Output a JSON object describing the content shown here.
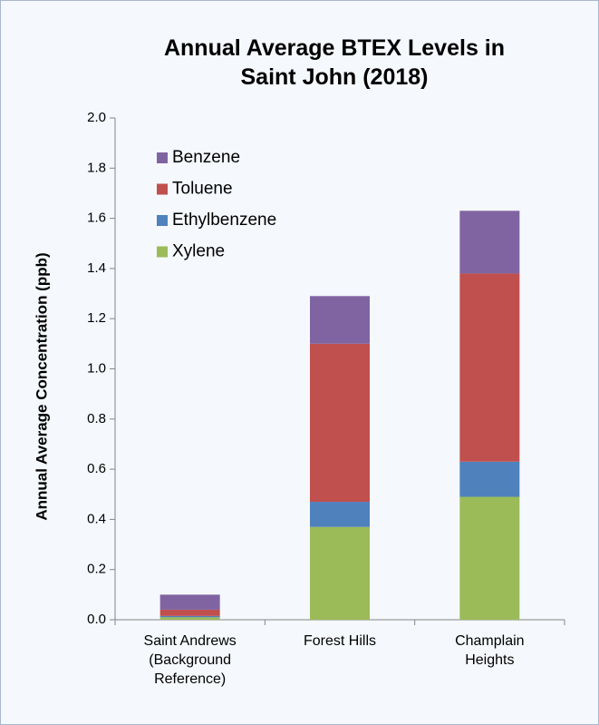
{
  "chart_data": {
    "type": "stacked_bar",
    "title": "Annual Average BTEX Levels in Saint John (2018)",
    "y_label": "Annual Average Concentration (ppb)",
    "categories": [
      "Saint Andrews (Background Reference)",
      "Forest Hills",
      "Champlain Heights"
    ],
    "series": [
      {
        "name": "Xylene",
        "color": "#9bbb59",
        "values": [
          0.01,
          0.37,
          0.49
        ]
      },
      {
        "name": "Ethylbenzene",
        "color": "#4f81bd",
        "values": [
          0.005,
          0.1,
          0.14
        ]
      },
      {
        "name": "Toluene",
        "color": "#c0504d",
        "values": [
          0.025,
          0.63,
          0.75
        ]
      },
      {
        "name": "Benzene",
        "color": "#8064a2",
        "values": [
          0.06,
          0.19,
          0.25
        ]
      }
    ],
    "ylim": [
      0,
      2.0
    ],
    "yticks": [
      {
        "value": 0,
        "label": "0.0"
      },
      {
        "value": 0.2,
        "label": "0.2"
      },
      {
        "value": 0.4,
        "label": "0.4"
      },
      {
        "value": 0.6,
        "label": "0.6"
      },
      {
        "value": 0.8,
        "label": "0.8"
      },
      {
        "value": 1.0,
        "label": "1.0"
      },
      {
        "value": 1.2,
        "label": "1.2"
      },
      {
        "value": 1.4,
        "label": "1.4"
      },
      {
        "value": 1.6,
        "label": "1.6"
      },
      {
        "value": 1.8,
        "label": "1.8"
      },
      {
        "value": 2.0,
        "label": "2.0"
      }
    ],
    "grid": false,
    "legend": "upper left"
  }
}
